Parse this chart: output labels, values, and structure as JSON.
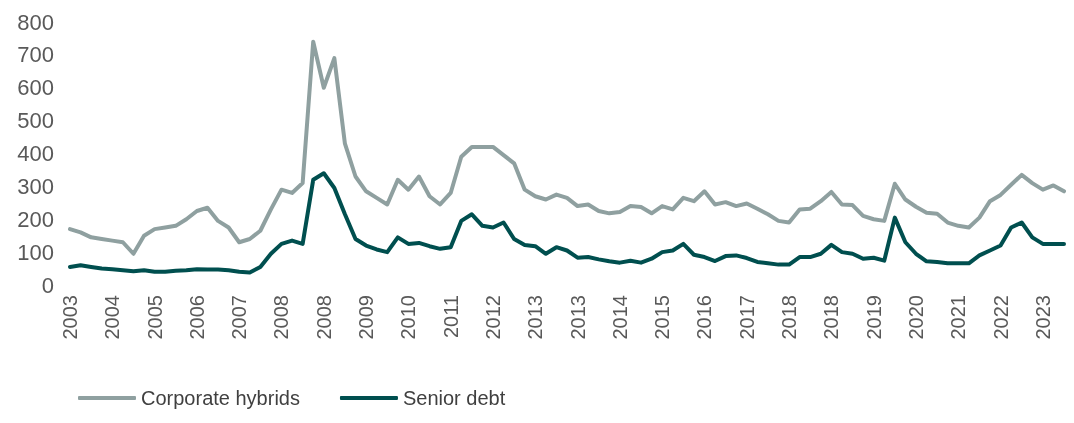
{
  "chart_data": {
    "type": "line",
    "categories": [
      "2003",
      null,
      null,
      null,
      "2004",
      null,
      null,
      null,
      "2005",
      null,
      null,
      null,
      "2006",
      null,
      null,
      null,
      "2007",
      null,
      null,
      null,
      "2008",
      null,
      null,
      null,
      "2008",
      null,
      null,
      null,
      "2009",
      null,
      null,
      null,
      "2010",
      null,
      null,
      null,
      "2011",
      null,
      null,
      null,
      "2012",
      null,
      null,
      null,
      "2013",
      null,
      null,
      null,
      "2013",
      null,
      null,
      null,
      "2014",
      null,
      null,
      null,
      "2015",
      null,
      null,
      null,
      "2016",
      null,
      null,
      null,
      "2017",
      null,
      null,
      null,
      "2018",
      null,
      null,
      null,
      "2018",
      null,
      null,
      null,
      "2019",
      null,
      null,
      null,
      "2020",
      null,
      null,
      null,
      "2021",
      null,
      null,
      null,
      "2022",
      null,
      null,
      null,
      "2023",
      null,
      null
    ],
    "series": [
      {
        "name": "Corporate hybrids",
        "color": "#8fa0a0",
        "values": [
          170,
          160,
          145,
          140,
          135,
          130,
          95,
          150,
          170,
          175,
          180,
          200,
          225,
          235,
          195,
          175,
          130,
          140,
          165,
          230,
          290,
          280,
          310,
          740,
          600,
          690,
          430,
          330,
          285,
          265,
          245,
          320,
          290,
          330,
          270,
          245,
          280,
          390,
          420,
          420,
          420,
          395,
          370,
          290,
          270,
          260,
          275,
          265,
          240,
          245,
          225,
          218,
          222,
          240,
          237,
          218,
          240,
          230,
          265,
          255,
          285,
          245,
          252,
          240,
          248,
          232,
          215,
          195,
          190,
          230,
          232,
          255,
          283,
          245,
          243,
          210,
          200,
          195,
          308,
          260,
          238,
          220,
          217,
          190,
          180,
          175,
          205,
          255,
          274,
          305,
          335,
          310,
          290,
          303,
          285
        ]
      },
      {
        "name": "Senior debt",
        "color": "#004f4f",
        "values": [
          55,
          60,
          55,
          50,
          48,
          45,
          42,
          45,
          40,
          40,
          43,
          45,
          48,
          47,
          47,
          45,
          40,
          38,
          55,
          95,
          125,
          135,
          125,
          320,
          340,
          295,
          215,
          140,
          120,
          108,
          100,
          145,
          125,
          128,
          118,
          110,
          115,
          195,
          215,
          180,
          175,
          190,
          140,
          122,
          118,
          95,
          115,
          105,
          83,
          85,
          78,
          72,
          68,
          74,
          68,
          80,
          100,
          105,
          125,
          92,
          85,
          73,
          88,
          90,
          82,
          70,
          66,
          62,
          62,
          85,
          85,
          95,
          122,
          100,
          95,
          80,
          83,
          74,
          205,
          130,
          95,
          72,
          70,
          66,
          66,
          66,
          90,
          105,
          120,
          175,
          190,
          145,
          125,
          125,
          125
        ]
      }
    ],
    "ylim": [
      0,
      800
    ],
    "yticks": [
      0,
      100,
      200,
      300,
      400,
      500,
      600,
      700,
      800
    ],
    "grid": false,
    "legend": "bottom left",
    "marker": "none",
    "line_style": "solid"
  }
}
